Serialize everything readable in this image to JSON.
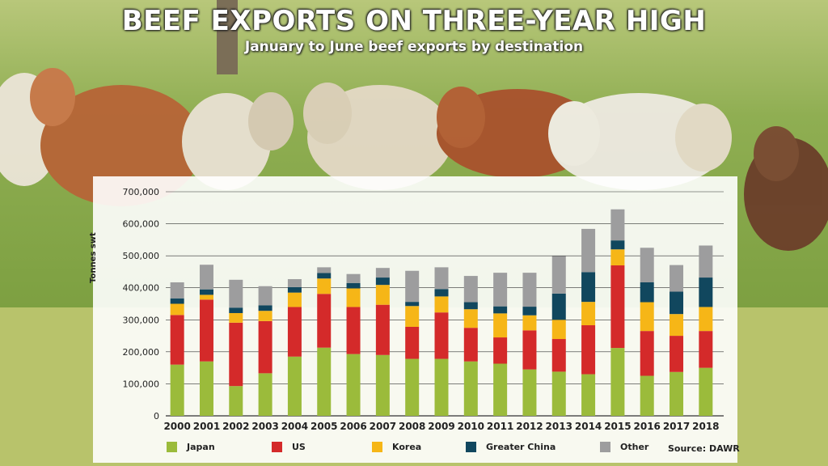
{
  "header": {
    "title": "BEEF EXPORTS ON THREE-YEAR HIGH",
    "subtitle": "January to June beef exports by destination"
  },
  "source": "Source:  DAWR",
  "chart_data": {
    "type": "bar",
    "stacked": true,
    "title": "BEEF EXPORTS ON THREE-YEAR HIGH",
    "subtitle": "January to June beef exports by destination",
    "xlabel": "",
    "ylabel": "Tonnes swt",
    "ylim": [
      0,
      700000
    ],
    "yticks": [
      0,
      100000,
      200000,
      300000,
      400000,
      500000,
      600000,
      700000
    ],
    "ytick_labels": [
      "0",
      "100,000",
      "200,000",
      "300,000",
      "400,000",
      "500,000",
      "600,000",
      "700,000"
    ],
    "grid": true,
    "legend_position": "bottom",
    "categories": [
      "2000",
      "2001",
      "2002",
      "2003",
      "2004",
      "2005",
      "2006",
      "2007",
      "2008",
      "2009",
      "2010",
      "2011",
      "2012",
      "2013",
      "2014",
      "2015",
      "2016",
      "2017",
      "2018"
    ],
    "series": [
      {
        "name": "Japan",
        "color": "#9bbb3b",
        "values": [
          160000,
          170000,
          93000,
          133000,
          185000,
          213000,
          193000,
          190000,
          178000,
          178000,
          170000,
          163000,
          145000,
          138000,
          130000,
          212000,
          125000,
          137000,
          150000
        ]
      },
      {
        "name": "US",
        "color": "#d42a2a",
        "values": [
          155000,
          193000,
          198000,
          163000,
          155000,
          168000,
          147000,
          157000,
          100000,
          145000,
          105000,
          82000,
          122000,
          102000,
          153000,
          258000,
          140000,
          113000,
          115000
        ]
      },
      {
        "name": "Korea",
        "color": "#f6b617",
        "values": [
          35000,
          15000,
          30000,
          32000,
          45000,
          48000,
          58000,
          62000,
          65000,
          50000,
          58000,
          75000,
          47000,
          60000,
          73000,
          50000,
          90000,
          68000,
          75000
        ]
      },
      {
        "name": "Greater China",
        "color": "#11475e",
        "values": [
          17000,
          17000,
          17000,
          17000,
          17000,
          17000,
          17000,
          23000,
          13000,
          23000,
          22000,
          22000,
          27000,
          82000,
          93000,
          28000,
          62000,
          70000,
          92000
        ]
      },
      {
        "name": "Other",
        "color": "#9d9d9e",
        "values": [
          50000,
          77000,
          87000,
          60000,
          25000,
          18000,
          28000,
          30000,
          97000,
          68000,
          82000,
          105000,
          106000,
          117000,
          135000,
          97000,
          108000,
          83000,
          100000
        ]
      }
    ]
  }
}
